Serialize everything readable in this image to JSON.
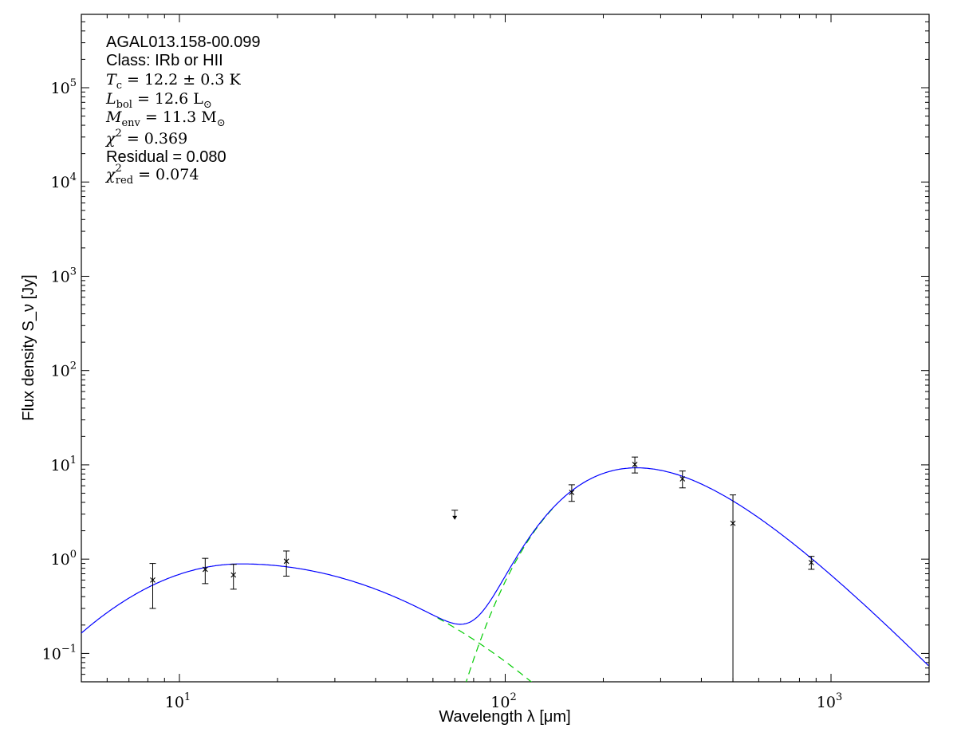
{
  "chart_data": {
    "type": "scatter",
    "title": "",
    "xlabel": "Wavelength λ [μm]",
    "ylabel": "Flux density S_ν [Jy]",
    "xscale": "log",
    "yscale": "log",
    "xlim": [
      5.0,
      2000.0
    ],
    "ylim": [
      0.05,
      600000
    ],
    "x_ticks": [
      {
        "value": 10,
        "base": "10",
        "exp": "1"
      },
      {
        "value": 100,
        "base": "10",
        "exp": "2"
      },
      {
        "value": 1000,
        "base": "10",
        "exp": "3"
      }
    ],
    "y_ticks": [
      {
        "value": 0.1,
        "base": "10",
        "exp": "−1"
      },
      {
        "value": 1,
        "base": "10",
        "exp": "0"
      },
      {
        "value": 10,
        "base": "10",
        "exp": "1"
      },
      {
        "value": 100,
        "base": "10",
        "exp": "2"
      },
      {
        "value": 1000,
        "base": "10",
        "exp": "3"
      },
      {
        "value": 10000,
        "base": "10",
        "exp": "4"
      },
      {
        "value": 100000,
        "base": "10",
        "exp": "5"
      }
    ],
    "grid": false,
    "points": [
      {
        "x": 8.28,
        "y": 0.6,
        "yerr_low": 0.3,
        "yerr_high": 0.9
      },
      {
        "x": 12.0,
        "y": 0.78,
        "yerr_low": 0.55,
        "yerr_high": 1.02
      },
      {
        "x": 14.65,
        "y": 0.68,
        "yerr_low": 0.48,
        "yerr_high": 0.88
      },
      {
        "x": 21.3,
        "y": 0.95,
        "yerr_low": 0.66,
        "yerr_high": 1.22
      },
      {
        "x": 160,
        "y": 5.1,
        "yerr_low": 4.1,
        "yerr_high": 6.15
      },
      {
        "x": 250,
        "y": 10.1,
        "yerr_low": 8.2,
        "yerr_high": 12.1
      },
      {
        "x": 350,
        "y": 7.1,
        "yerr_low": 5.7,
        "yerr_high": 8.6
      },
      {
        "x": 500,
        "y": 2.4,
        "yerr_low": 0.05,
        "yerr_high": 4.8
      },
      {
        "x": 870,
        "y": 0.92,
        "yerr_low": 0.78,
        "yerr_high": 1.07
      }
    ],
    "upper_limits": [
      {
        "x": 70,
        "y": 3.3
      }
    ],
    "model_fit": {
      "color": "#0000ff",
      "components": [
        {
          "type": "cold_envelope_greybody",
          "T": 12.2,
          "peak_x": 245,
          "peak_y": 9.3
        },
        {
          "type": "warm_power_law",
          "color": "#00cc00",
          "style": "dashed"
        }
      ]
    },
    "annotations": {
      "source": "AGAL013.158-00.099",
      "class": "Class: IRb or HII",
      "tc": {
        "sym": "T",
        "sub": "c",
        "rest": " = 12.2 ± 0.3",
        "unit": "K"
      },
      "lbol": {
        "sym": "L",
        "sub": "bol",
        "rest": " = 12.6",
        "unit": "L",
        "unit_sub": "⊙"
      },
      "menv": {
        "sym": "M",
        "sub": "env",
        "rest": " = 11.3",
        "unit": "M",
        "unit_sub": "⊙"
      },
      "chi2": {
        "sym": "χ",
        "sup": "2",
        "rest": " = 0.369"
      },
      "residual": "Residual = 0.080",
      "chi2red": {
        "sym": "χ",
        "sup": "2",
        "sub": "red",
        "rest": " = 0.074"
      }
    },
    "colors": {
      "fit": "#0000ff",
      "components": "#00cc00",
      "data": "#000000"
    }
  }
}
